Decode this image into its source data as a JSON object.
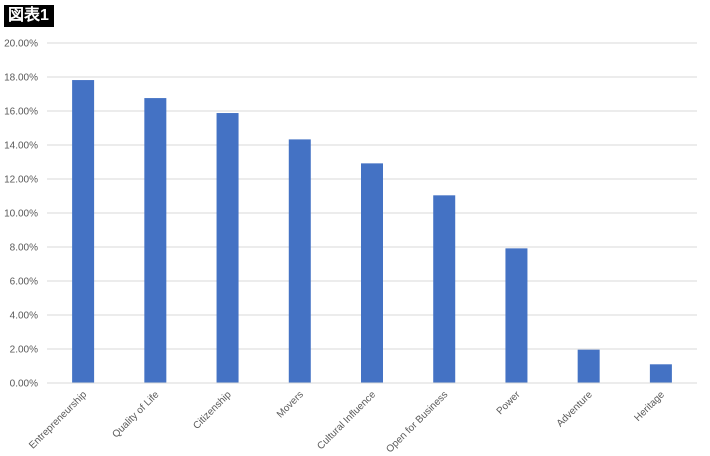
{
  "figure_label": "図表1",
  "chart_data": {
    "type": "bar",
    "title": "",
    "xlabel": "",
    "ylabel": "",
    "categories": [
      "Entrepreneurship",
      "Quality of Life",
      "Citizenship",
      "Movers",
      "Cultural Influence",
      "Open for Business",
      "Power",
      "Adventure",
      "Heritage"
    ],
    "values": [
      17.82,
      16.76,
      15.88,
      14.33,
      12.92,
      11.04,
      7.92,
      1.96,
      1.1
    ],
    "value_unit": "%",
    "ylim": [
      0,
      20
    ],
    "yticks": [
      "0.00%",
      "2.00%",
      "4.00%",
      "6.00%",
      "8.00%",
      "10.00%",
      "12.00%",
      "14.00%",
      "16.00%",
      "18.00%",
      "20.00%"
    ],
    "grid": true,
    "legend": "none",
    "bar_color": "#4472C4",
    "grid_color": "#D9D9D9"
  }
}
